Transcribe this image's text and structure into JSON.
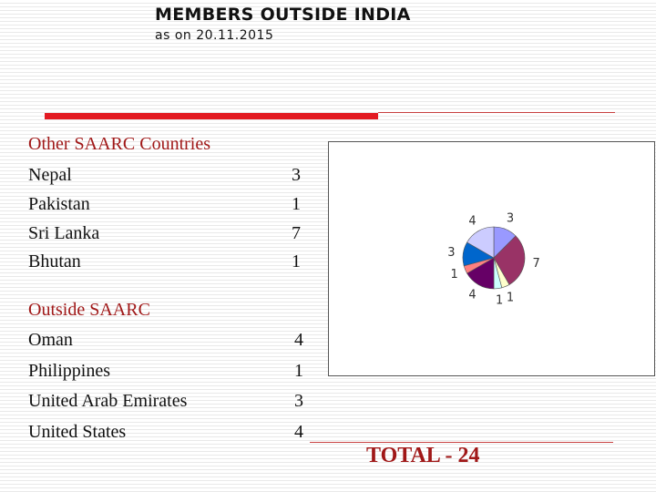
{
  "header": {
    "title": "MEMBERS OUTSIDE INDIA",
    "subtitle": "as on 20.11.2015"
  },
  "saarc": {
    "heading": "Other SAARC Countries",
    "rows": [
      {
        "name": "Nepal",
        "count": "3"
      },
      {
        "name": "Pakistan",
        "count": "1"
      },
      {
        "name": "Sri Lanka",
        "count": "7"
      },
      {
        "name": "Bhutan",
        "count": "1"
      }
    ]
  },
  "outside": {
    "heading": "Outside SAARC",
    "rows": [
      {
        "name": "Oman",
        "count": "4"
      },
      {
        "name": "Philippines",
        "count": "1"
      },
      {
        "name": "United Arab Emirates",
        "count": "3"
      },
      {
        "name": "United States",
        "count": "4"
      }
    ]
  },
  "total": "TOTAL - 24",
  "colors": {
    "accent_red": "#e31b23",
    "heading_red": "#a01818"
  },
  "chart_data": {
    "type": "pie",
    "slices": [
      {
        "value": 3,
        "color": "#9999ff"
      },
      {
        "value": 7,
        "color": "#993366"
      },
      {
        "value": 1,
        "color": "#ffffcc"
      },
      {
        "value": 1,
        "color": "#ccffff"
      },
      {
        "value": 4,
        "color": "#660066"
      },
      {
        "value": 1,
        "color": "#ff8080"
      },
      {
        "value": 3,
        "color": "#0066cc"
      },
      {
        "value": 4,
        "color": "#ccccff"
      }
    ]
  }
}
